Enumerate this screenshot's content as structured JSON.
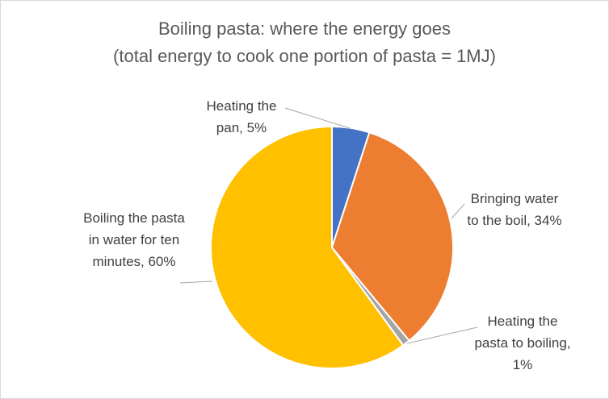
{
  "chart_data": {
    "type": "pie",
    "title": "Boiling pasta: where the energy goes",
    "subtitle": "(total energy to cook one portion of pasta = 1MJ)",
    "values": [
      5,
      34,
      1,
      60
    ],
    "value_labels": [
      "Heating the pan, 5%",
      "Bringing water to the boil, 34%",
      "Heating the pasta to boiling, 1%",
      "Boiling the pasta in water for ten minutes, 60%"
    ],
    "colors": [
      "#4472c4",
      "#ed7d31",
      "#a5a5a5",
      "#ffc000"
    ]
  }
}
